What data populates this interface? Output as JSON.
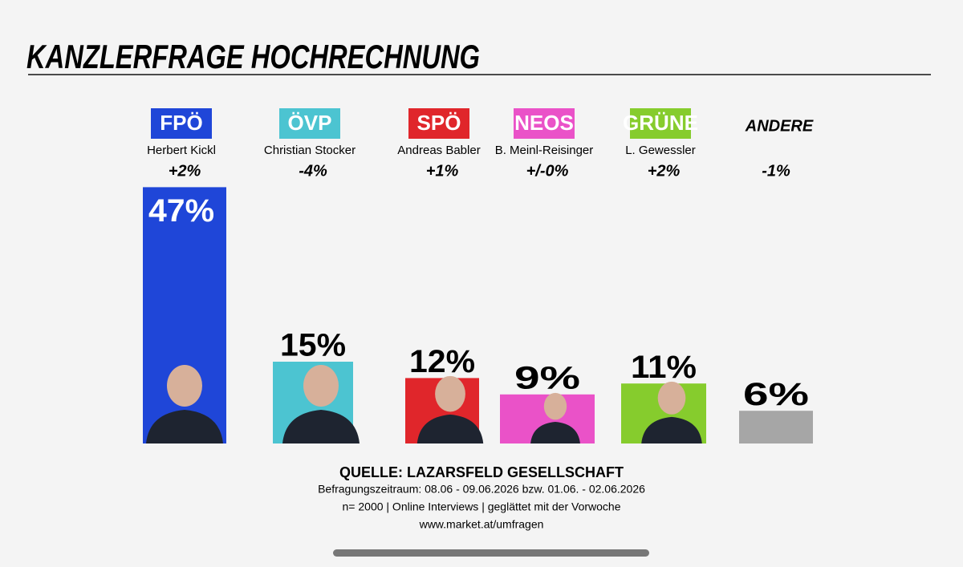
{
  "chart_data": {
    "type": "bar",
    "title": "KANZLERFRAGE HOCHRECHNUNG",
    "categories": [
      "FPÖ",
      "ÖVP",
      "SPÖ",
      "NEOS",
      "GRÜNE",
      "ANDERE"
    ],
    "candidates": [
      "Herbert Kickl",
      "Christian Stocker",
      "Andreas Babler",
      "B. Meinl-Reisinger",
      "L. Gewessler",
      null
    ],
    "changes": [
      "+2%",
      "-4%",
      "+1%",
      "+/-0%",
      "+2%",
      "-1%"
    ],
    "values": [
      47,
      15,
      12,
      9,
      11,
      6
    ],
    "value_labels": [
      "47%",
      "15%",
      "12%",
      "9%",
      "11%",
      "6%"
    ],
    "colors": [
      "#1f46d8",
      "#4cc4d1",
      "#e0262b",
      "#ea52c8",
      "#86cc2d",
      "#a6a6a6"
    ],
    "source": {
      "title": "QUELLE: LAZARSFELD GESELLSCHAFT",
      "lines": [
        "Befragungszeitraum: 08.06 - 09.06.2026 bzw. 01.06. - 02.06.2026",
        "n= 2000 | Online Interviews | geglättet mit der Vorwoche",
        "www.market.at/umfragen"
      ]
    }
  }
}
